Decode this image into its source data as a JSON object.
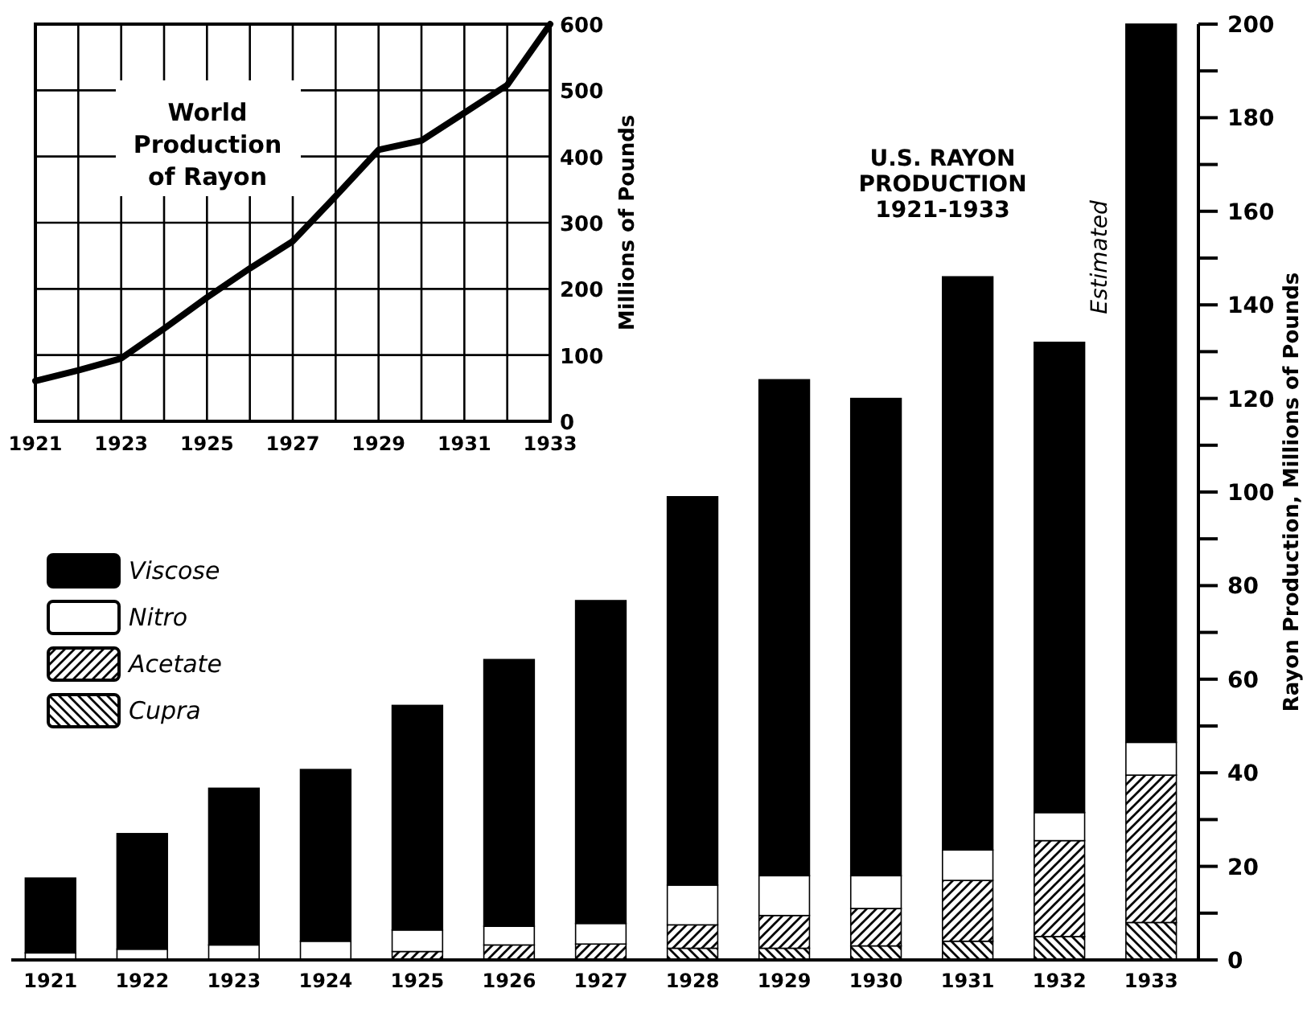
{
  "chart_data": [
    {
      "type": "line",
      "title": "World Production of Rayon",
      "ylabel": "Millions of Pounds",
      "x": [
        1921,
        1922,
        1923,
        1924,
        1925,
        1926,
        1927,
        1928,
        1929,
        1930,
        1931,
        1932,
        1933
      ],
      "series": [
        {
          "color": "#000000",
          "values": [
            61,
            77,
            95,
            140,
            187,
            231,
            272,
            340,
            410,
            424,
            466,
            508,
            600
          ]
        }
      ],
      "xlim": [
        1921,
        1933
      ],
      "xticks": [
        1921,
        {
          "value": 1922,
          "label": null
        },
        1923,
        {
          "value": 1924,
          "label": null
        },
        1925,
        {
          "value": 1926,
          "label": null
        },
        1927,
        {
          "value": 1928,
          "label": null
        },
        1929,
        {
          "value": 1930,
          "label": null
        },
        1931,
        {
          "value": 1932,
          "label": null
        },
        1933
      ],
      "ylim": [
        0,
        600
      ],
      "yticks": [
        0,
        100,
        200,
        300,
        400,
        500,
        600
      ],
      "grid": true,
      "marker": "none",
      "line_style": "solid"
    },
    {
      "type": "bar",
      "title": "U.S. RAYON PRODUCTION 1921-1933",
      "ylabel": "Rayon Production, Millions of Pounds",
      "categories": [
        "1921",
        "1922",
        "1923",
        "1924",
        "1925",
        "1926",
        "1927",
        "1928",
        "1929",
        "1930",
        "1931",
        "1932",
        "1933"
      ],
      "stacked": true,
      "series": [
        {
          "name": "Cupra",
          "color": "#000000",
          "values": [
            0,
            0,
            0,
            0,
            0,
            0,
            0,
            2.5,
            2.5,
            3,
            4,
            5,
            8
          ]
        },
        {
          "name": "Acetate",
          "color": "#000000",
          "values": [
            0,
            0,
            0,
            0,
            1.8,
            3.2,
            3.4,
            5,
            7,
            8,
            13,
            20.5,
            31.5
          ]
        },
        {
          "name": "Nitro",
          "color": "#ffffff",
          "values": [
            1.5,
            2.3,
            3.2,
            4,
            4.6,
            4,
            4.4,
            8.5,
            8.5,
            7,
            6.5,
            6,
            7
          ]
        },
        {
          "name": "Viscose",
          "color": "#000000",
          "values": [
            16,
            24.7,
            33.5,
            36.7,
            48,
            57,
            69,
            83,
            106,
            102,
            122.5,
            100.5,
            153.5
          ]
        }
      ],
      "ylim": [
        0,
        200
      ],
      "yticks": [
        0,
        {
          "value": 10,
          "label": null
        },
        20,
        {
          "value": 30,
          "label": null
        },
        40,
        {
          "value": 50,
          "label": null
        },
        60,
        {
          "value": 70,
          "label": null
        },
        80,
        {
          "value": 90,
          "label": null
        },
        100,
        {
          "value": 110,
          "label": null
        },
        120,
        {
          "value": 130,
          "label": null
        },
        140,
        {
          "value": 150,
          "label": null
        },
        160,
        {
          "value": 170,
          "label": null
        },
        180,
        {
          "value": 190,
          "label": null
        },
        200
      ],
      "legend": "left",
      "annotations": [
        "Estimated"
      ]
    }
  ]
}
